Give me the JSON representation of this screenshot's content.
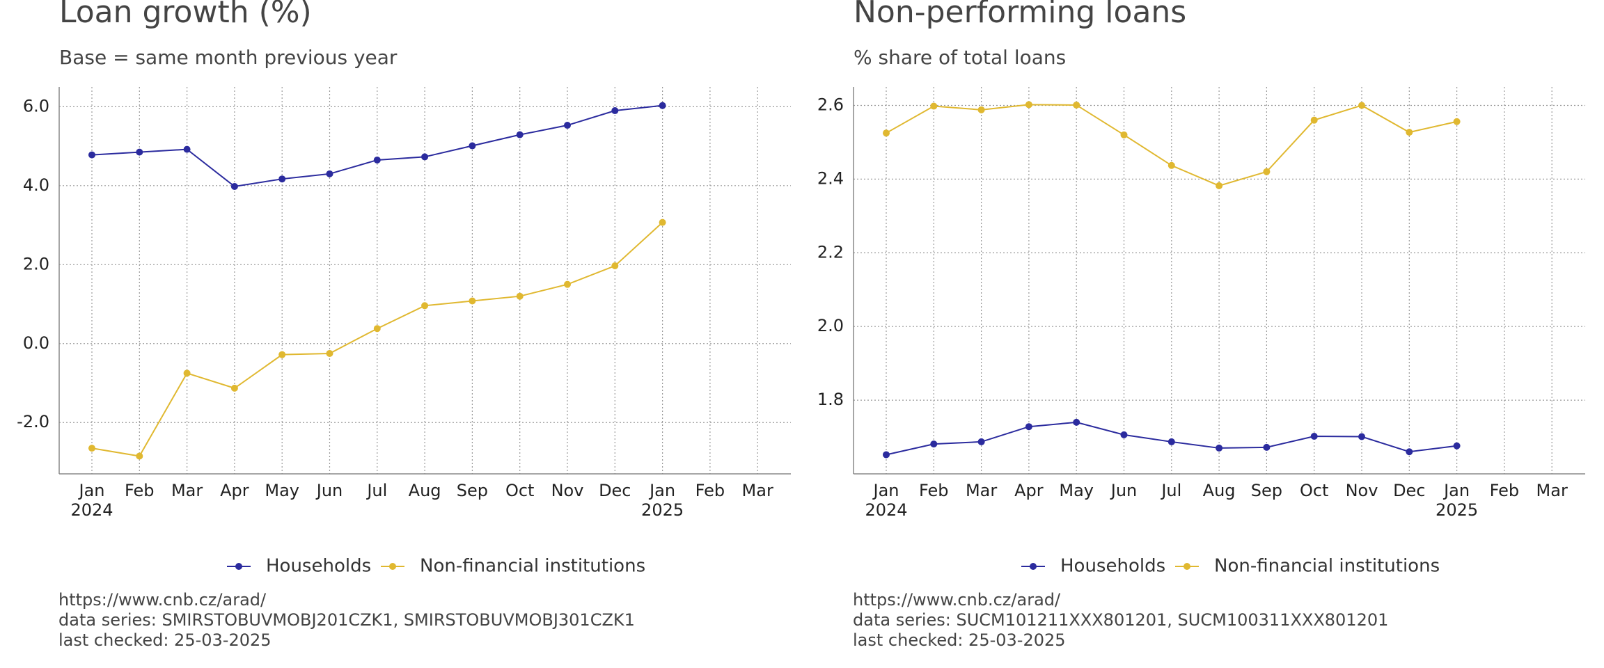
{
  "chart_data": [
    {
      "type": "line",
      "title": "Loan growth (%)",
      "subtitle": "Base = same month previous year",
      "categories": [
        "Jan 2024",
        "Feb",
        "Mar",
        "Apr",
        "May",
        "Jun",
        "Jul",
        "Aug",
        "Sep",
        "Oct",
        "Nov",
        "Dec",
        "Jan 2025",
        "Feb",
        "Mar"
      ],
      "series": [
        {
          "name": "Households",
          "color": "#2b2b9e",
          "values": [
            4.78,
            4.85,
            4.92,
            3.98,
            4.17,
            4.3,
            4.65,
            4.73,
            5.01,
            5.29,
            5.53,
            5.9,
            6.03,
            null,
            null
          ]
        },
        {
          "name": "Non-financial institutions",
          "color": "#e0b830",
          "values": [
            -2.65,
            -2.85,
            -0.75,
            -1.13,
            -0.28,
            -0.25,
            0.38,
            0.96,
            1.08,
            1.2,
            1.5,
            1.97,
            3.07,
            null,
            null
          ]
        }
      ],
      "ylim": [
        -3.3,
        6.5
      ],
      "yticks": [
        {
          "value": -2,
          "label": "-2.0"
        },
        {
          "value": 0,
          "label": "0.0"
        },
        {
          "value": 2,
          "label": "2.0"
        },
        {
          "value": 4,
          "label": "4.0"
        },
        {
          "value": 6,
          "label": "6.0"
        }
      ],
      "grid": true,
      "legend": "bottom",
      "source": [
        "https://www.cnb.cz/arad/",
        "data series: SMIRSTOBUVMOBJ201CZK1, SMIRSTOBUVMOBJ301CZK1",
        "last checked: 25-03-2025"
      ]
    },
    {
      "type": "line",
      "title": "Non-performing loans",
      "subtitle": "% share of total loans",
      "categories": [
        "Jan 2024",
        "Feb",
        "Mar",
        "Apr",
        "May",
        "Jun",
        "Jul",
        "Aug",
        "Sep",
        "Oct",
        "Nov",
        "Dec",
        "Jan 2025",
        "Feb",
        "Mar"
      ],
      "series": [
        {
          "name": "Households",
          "color": "#2b2b9e",
          "values": [
            1.652,
            1.681,
            1.687,
            1.728,
            1.74,
            1.706,
            1.687,
            1.67,
            1.672,
            1.702,
            1.701,
            1.66,
            1.676,
            null,
            null
          ]
        },
        {
          "name": "Non-financial institutions",
          "color": "#e0b830",
          "values": [
            2.525,
            2.598,
            2.588,
            2.602,
            2.601,
            2.52,
            2.437,
            2.382,
            2.42,
            2.56,
            2.6,
            2.527,
            2.556,
            null,
            null
          ]
        }
      ],
      "ylim": [
        1.6,
        2.65
      ],
      "yticks": [
        1.8,
        {
          "value": 2,
          "label": "2.0"
        },
        2.2,
        2.4,
        2.6
      ],
      "grid": true,
      "legend": "bottom",
      "source": [
        "https://www.cnb.cz/arad/",
        "data series: SUCM101211XXX801201, SUCM100311XXX801201",
        "last checked: 25-03-2025"
      ]
    }
  ]
}
